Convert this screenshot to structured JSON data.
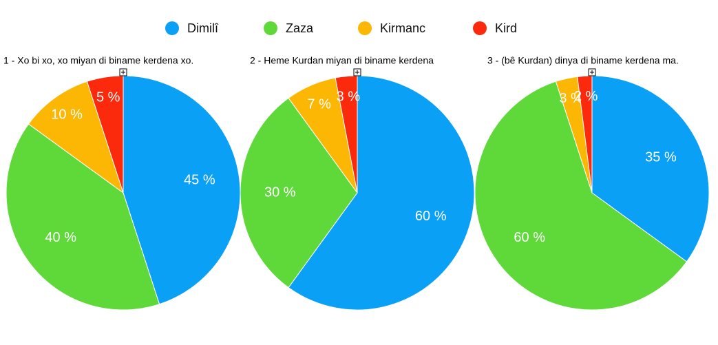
{
  "legend": {
    "items": [
      {
        "name": "Dimilî",
        "color": "#0aa0f6"
      },
      {
        "name": "Zaza",
        "color": "#5fd83a"
      },
      {
        "name": "Kirmanc",
        "color": "#fbb703"
      },
      {
        "name": "Kird",
        "color": "#fc2a0d"
      }
    ]
  },
  "chart_data": [
    {
      "type": "pie",
      "title": "1 - Xo bi xo, xo miyan di biname kerdena xo.",
      "values": [
        45,
        40,
        10,
        5
      ],
      "value_labels": [
        "45 %",
        "40 %",
        "10 %",
        "5 %"
      ]
    },
    {
      "type": "pie",
      "title": "2 - Heme Kurdan miyan di biname kerdena",
      "values": [
        60,
        30,
        7,
        3
      ],
      "value_labels": [
        "60 %",
        "30 %",
        "7 %",
        "3 %"
      ]
    },
    {
      "type": "pie",
      "title": "3 - (bê Kurdan) dinya di biname kerdena ma.",
      "values": [
        35,
        60,
        3,
        2
      ],
      "value_labels": [
        "35 %",
        "60 %",
        "3 %",
        "2 %"
      ]
    }
  ]
}
